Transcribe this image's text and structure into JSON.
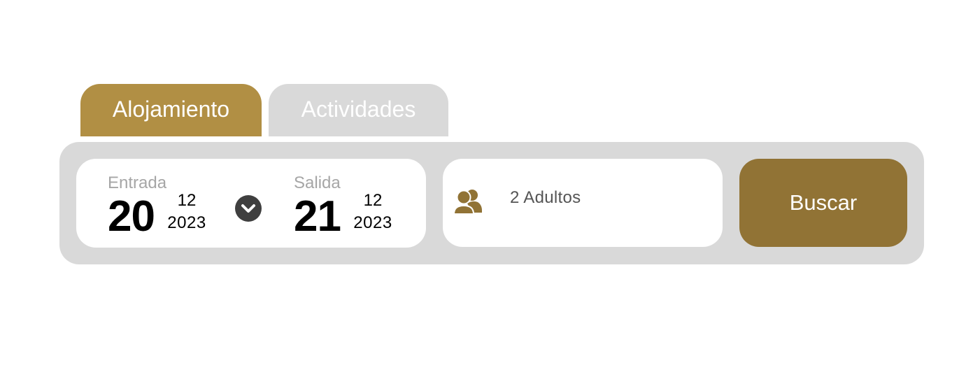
{
  "tabs": {
    "accommodation": "Alojamiento",
    "activities": "Actividades"
  },
  "checkin": {
    "label": "Entrada",
    "day": "20",
    "month": "12",
    "year": "2023"
  },
  "checkout": {
    "label": "Salida",
    "day": "21",
    "month": "12",
    "year": "2023"
  },
  "guests": {
    "value": "2 Adultos",
    "icon": "users-icon"
  },
  "search": {
    "label": "Buscar"
  },
  "icons": {
    "swap": "chevron-down-icon"
  },
  "colors": {
    "tab_active": "#b18f44",
    "tab_inactive": "#d9d9d9",
    "panel": "#d9d9d9",
    "button": "#917335",
    "icon_accent": "#917335"
  }
}
